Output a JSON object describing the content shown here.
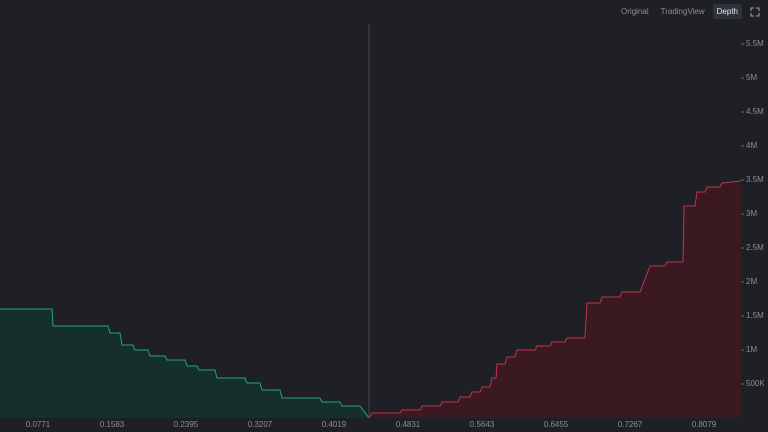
{
  "toolbar": {
    "tabs": [
      "Original",
      "TradingView",
      "Depth"
    ],
    "active": 2
  },
  "chart_data": {
    "type": "area",
    "xlim": [
      0.0354,
      0.8485
    ],
    "xticks": [
      0.0771,
      0.1583,
      0.2395,
      0.3207,
      0.4019,
      0.4831,
      0.5643,
      0.6455,
      0.7267,
      0.8079
    ],
    "ylim": [
      0,
      5794000
    ],
    "yticks": [
      {
        "value": 500000,
        "label": "500K"
      },
      {
        "value": 1000000,
        "label": "1M"
      },
      {
        "value": 1500000,
        "label": "1.5M"
      },
      {
        "value": 2000000,
        "label": "2M"
      },
      {
        "value": 2500000,
        "label": "2.5M"
      },
      {
        "value": 3000000,
        "label": "3M"
      },
      {
        "value": 3500000,
        "label": "3.5M"
      },
      {
        "value": 4000000,
        "label": "4M"
      },
      {
        "value": 4500000,
        "label": "4.5M"
      },
      {
        "value": 5000000,
        "label": "5M"
      },
      {
        "value": 5500000,
        "label": "5.5M"
      }
    ],
    "series": [
      {
        "color": "#25a37a",
        "fill": "#15302a",
        "x": [
          0.0354,
          0.0925,
          0.0936,
          0.1539,
          0.1561,
          0.1671,
          0.1693,
          0.1813,
          0.1835,
          0.1978,
          0.2,
          0.2165,
          0.2187,
          0.2384,
          0.2406,
          0.2516,
          0.2538,
          0.2713,
          0.2735,
          0.3042,
          0.3064,
          0.3207,
          0.3229,
          0.3426,
          0.3448,
          0.3865,
          0.3887,
          0.4085,
          0.4107,
          0.4304,
          0.4403
        ],
        "values": [
          1603000,
          1603000,
          1353000,
          1353000,
          1250000,
          1250000,
          1074000,
          1074000,
          1000000,
          1000000,
          912000,
          912000,
          853000,
          853000,
          765000,
          765000,
          706000,
          706000,
          588000,
          588000,
          515000,
          515000,
          412000,
          412000,
          294000,
          294000,
          235000,
          235000,
          176000,
          176000,
          0
        ]
      },
      {
        "color": "#c2334f",
        "fill": "#3a1921",
        "x": [
          0.4403,
          0.4436,
          0.4743,
          0.4765,
          0.4963,
          0.4985,
          0.5182,
          0.5204,
          0.538,
          0.5402,
          0.5511,
          0.5533,
          0.5621,
          0.5643,
          0.5731,
          0.5753,
          0.5797,
          0.5808,
          0.5895,
          0.5917,
          0.6005,
          0.6027,
          0.6225,
          0.6247,
          0.6389,
          0.6411,
          0.6554,
          0.6576,
          0.6773,
          0.6795,
          0.6938,
          0.696,
          0.7157,
          0.7179,
          0.7377,
          0.7487,
          0.7651,
          0.7673,
          0.7849,
          0.786,
          0.798,
          0.8002,
          0.809,
          0.8112,
          0.8255,
          0.8277,
          0.8485
        ],
        "values": [
          0,
          74000,
          74000,
          118000,
          118000,
          176000,
          176000,
          235000,
          235000,
          309000,
          309000,
          382000,
          382000,
          456000,
          456000,
          588000,
          588000,
          794000,
          794000,
          897000,
          897000,
          1000000,
          1000000,
          1059000,
          1059000,
          1118000,
          1118000,
          1176000,
          1176000,
          1691000,
          1691000,
          1779000,
          1779000,
          1853000,
          1853000,
          2235000,
          2235000,
          2294000,
          2294000,
          3118000,
          3118000,
          3324000,
          3324000,
          3397000,
          3397000,
          3456000,
          3485000
        ]
      }
    ]
  }
}
